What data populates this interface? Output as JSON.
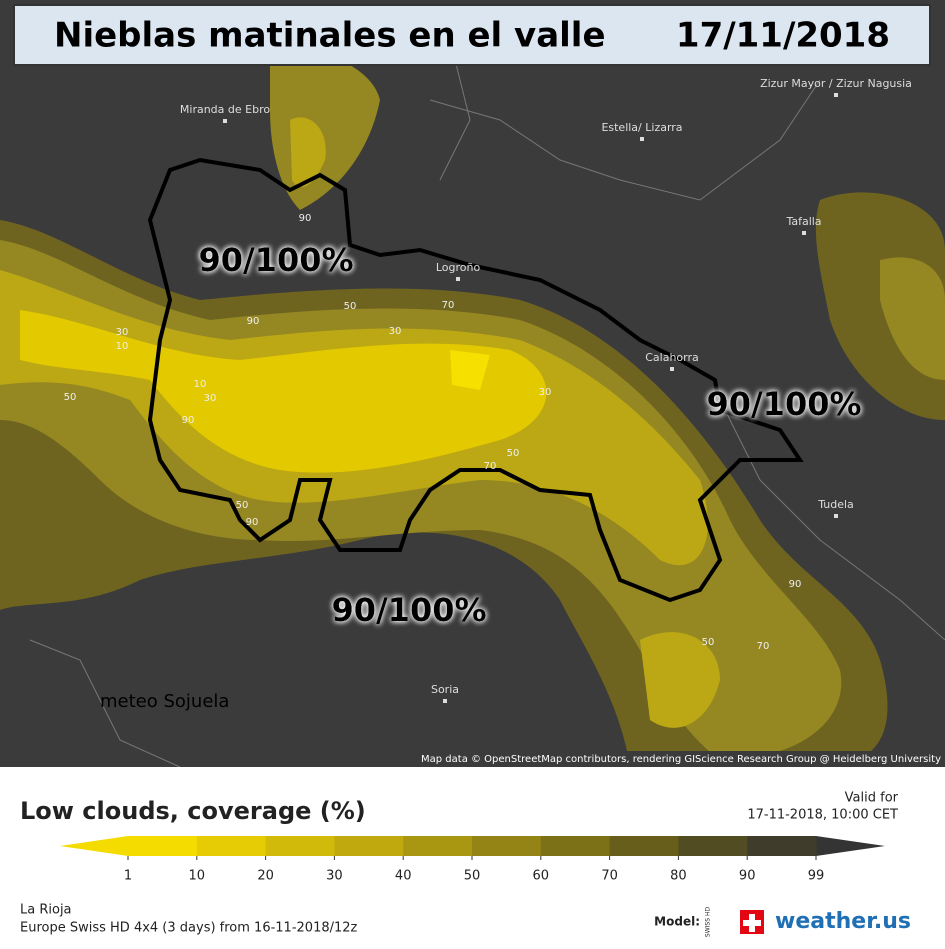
{
  "header": {
    "title": "Nieblas matinales en el valle",
    "date": "17/11/2018"
  },
  "map": {
    "places": [
      "Miranda de Ebro",
      "Estella/ Lizarra",
      "Zizur Mayor / Zizur Nagusia",
      "Tafalla",
      "Logroño",
      "Calahorra",
      "Tudela",
      "Soria"
    ],
    "annotations": [
      "90/100%",
      "90/100%",
      "90/100%"
    ],
    "contour_labels": [
      90,
      90,
      50,
      70,
      30,
      30,
      10,
      50,
      10,
      30,
      90,
      30,
      50,
      70,
      50,
      90,
      90,
      50,
      70
    ],
    "watermark": "meteo Sojuela",
    "attribution": "Map data © OpenStreetMap contributors, rendering GIScience Research Group @ Heidelberg University"
  },
  "legend": {
    "title": "Low clouds, coverage (%)",
    "valid_label": "Valid for",
    "valid_time": "17-11-2018, 10:00 CET",
    "ticks": [
      1,
      10,
      20,
      30,
      40,
      50,
      60,
      70,
      80,
      90,
      99
    ],
    "colors": [
      "#f5dc00",
      "#e6cc05",
      "#d2ba0a",
      "#bfa90f",
      "#a99712",
      "#938415",
      "#7d7117",
      "#675e1b",
      "#524c22",
      "#3f3c2c",
      "#343434"
    ],
    "region": "La Rioja",
    "model_run": "Europe Swiss HD 4x4 (3 days) from 16-11-2018/12z",
    "model_label": "Model:",
    "model_badge": "SWISS HD",
    "brand": "weather.us"
  }
}
